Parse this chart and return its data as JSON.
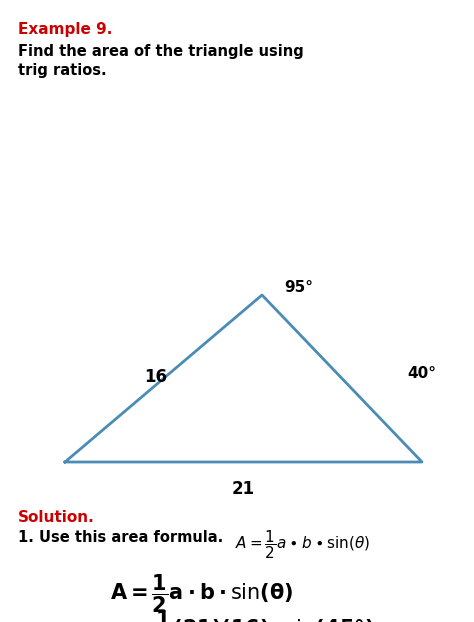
{
  "title": "Example 9.",
  "title_color": "#cc0000",
  "problem_line1": "Find the area of the triangle using",
  "problem_line2": "trig ratios.",
  "triangle_color": "#4a8cb5",
  "triangle_linewidth": 2.0,
  "bg_color": "#ffffff",
  "text_color": "#000000",
  "solution_color": "#cc0000",
  "fig_width": 4.74,
  "fig_height": 6.22,
  "dpi": 100
}
